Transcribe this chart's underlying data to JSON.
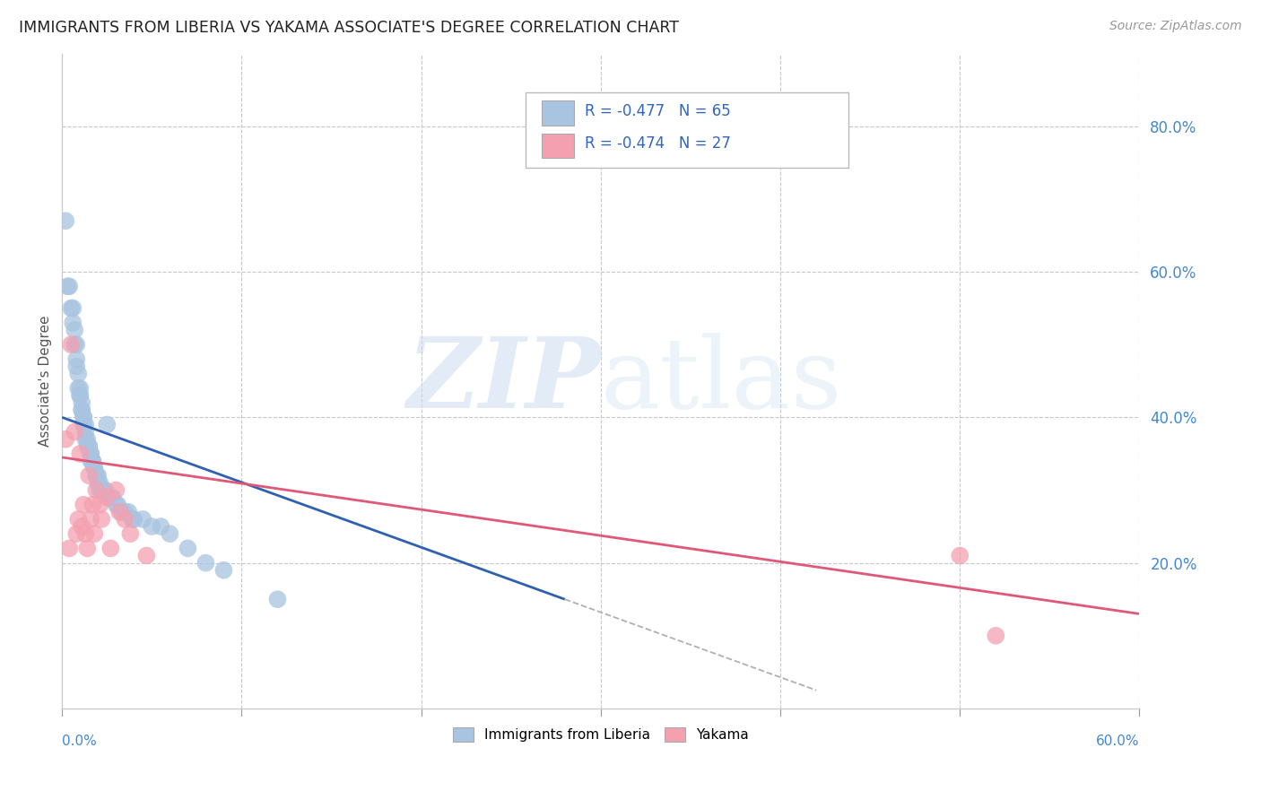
{
  "title": "IMMIGRANTS FROM LIBERIA VS YAKAMA ASSOCIATE'S DEGREE CORRELATION CHART",
  "source": "Source: ZipAtlas.com",
  "ylabel": "Associate's Degree",
  "liberia_color": "#a8c4e0",
  "yakama_color": "#f4a0b0",
  "liberia_line_color": "#3060b0",
  "yakama_line_color": "#e05878",
  "watermark_zip": "ZIP",
  "watermark_atlas": "atlas",
  "xlim": [
    0.0,
    0.6
  ],
  "ylim": [
    0.0,
    0.9
  ],
  "ytick_vals": [
    0.2,
    0.4,
    0.6,
    0.8
  ],
  "ytick_labels": [
    "20.0%",
    "40.0%",
    "60.0%",
    "80.0%"
  ],
  "lib_scatter_x": [
    0.002,
    0.003,
    0.004,
    0.005,
    0.006,
    0.006,
    0.007,
    0.007,
    0.008,
    0.008,
    0.008,
    0.009,
    0.009,
    0.01,
    0.01,
    0.01,
    0.011,
    0.011,
    0.011,
    0.012,
    0.012,
    0.012,
    0.013,
    0.013,
    0.013,
    0.014,
    0.014,
    0.015,
    0.015,
    0.016,
    0.016,
    0.016,
    0.017,
    0.017,
    0.018,
    0.018,
    0.019,
    0.019,
    0.02,
    0.02,
    0.021,
    0.021,
    0.022,
    0.023,
    0.023,
    0.024,
    0.025,
    0.026,
    0.027,
    0.028,
    0.03,
    0.031,
    0.033,
    0.035,
    0.037,
    0.039,
    0.04,
    0.045,
    0.05,
    0.055,
    0.06,
    0.07,
    0.08,
    0.09,
    0.12
  ],
  "lib_scatter_y": [
    0.67,
    0.58,
    0.58,
    0.55,
    0.55,
    0.53,
    0.52,
    0.5,
    0.5,
    0.48,
    0.47,
    0.46,
    0.44,
    0.44,
    0.43,
    0.43,
    0.42,
    0.41,
    0.41,
    0.4,
    0.4,
    0.39,
    0.39,
    0.38,
    0.37,
    0.37,
    0.36,
    0.36,
    0.36,
    0.35,
    0.35,
    0.34,
    0.34,
    0.34,
    0.33,
    0.33,
    0.32,
    0.32,
    0.32,
    0.31,
    0.31,
    0.3,
    0.3,
    0.3,
    0.3,
    0.3,
    0.39,
    0.29,
    0.29,
    0.29,
    0.28,
    0.28,
    0.27,
    0.27,
    0.27,
    0.26,
    0.26,
    0.26,
    0.25,
    0.25,
    0.24,
    0.22,
    0.2,
    0.19,
    0.15
  ],
  "yak_scatter_x": [
    0.002,
    0.004,
    0.005,
    0.007,
    0.008,
    0.009,
    0.01,
    0.011,
    0.012,
    0.013,
    0.014,
    0.015,
    0.016,
    0.017,
    0.018,
    0.019,
    0.021,
    0.022,
    0.025,
    0.027,
    0.03,
    0.032,
    0.035,
    0.038,
    0.047,
    0.5,
    0.52
  ],
  "yak_scatter_y": [
    0.37,
    0.22,
    0.5,
    0.38,
    0.24,
    0.26,
    0.35,
    0.25,
    0.28,
    0.24,
    0.22,
    0.32,
    0.26,
    0.28,
    0.24,
    0.3,
    0.28,
    0.26,
    0.29,
    0.22,
    0.3,
    0.27,
    0.26,
    0.24,
    0.21,
    0.21,
    0.1
  ],
  "lib_line_x0": 0.0,
  "lib_line_x1": 0.28,
  "lib_line_ext_x1": 0.42,
  "lib_line_y0": 0.4,
  "lib_line_y1": 0.15,
  "yak_line_x0": 0.0,
  "yak_line_x1": 0.6,
  "yak_line_y0": 0.345,
  "yak_line_y1": 0.13
}
